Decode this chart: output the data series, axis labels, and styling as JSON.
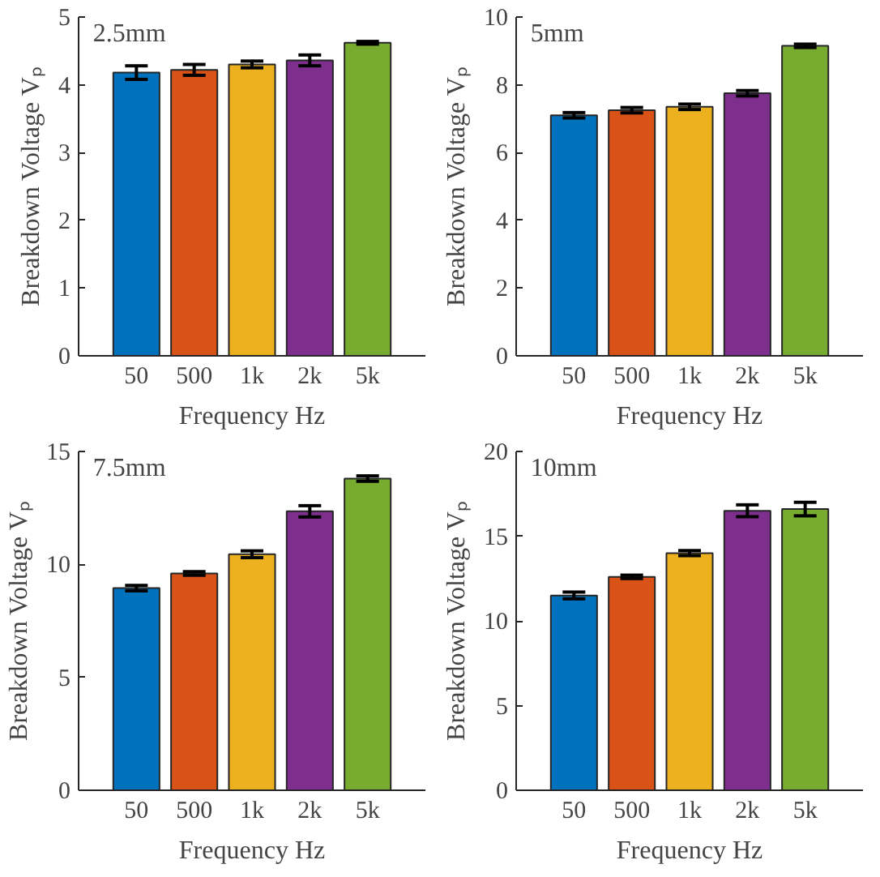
{
  "chart_data": [
    {
      "type": "bar",
      "categories": [
        "50",
        "500",
        "1k",
        "2k",
        "5k"
      ],
      "xlabel": "Frequency Hz",
      "ylabel": "Breakdown Voltage Vₚ",
      "annotations": [
        "2.5mm"
      ],
      "values": [
        4.18,
        4.22,
        4.3,
        4.36,
        4.62
      ],
      "errors": [
        0.1,
        0.08,
        0.05,
        0.08,
        0.02
      ],
      "colors": [
        "#0072bd",
        "#d95319",
        "#edb120",
        "#7e2f8e",
        "#77ac30"
      ],
      "ylim": [
        0,
        5
      ],
      "yticks": [
        0,
        1,
        2,
        3,
        4,
        5
      ],
      "grid": false
    },
    {
      "type": "bar",
      "categories": [
        "50",
        "500",
        "1k",
        "2k",
        "5k"
      ],
      "xlabel": "Frequency Hz",
      "ylabel": "Breakdown Voltage Vₚ",
      "annotations": [
        "5mm"
      ],
      "values": [
        7.1,
        7.25,
        7.35,
        7.75,
        9.15
      ],
      "errors": [
        0.08,
        0.08,
        0.08,
        0.08,
        0.05
      ],
      "colors": [
        "#0072bd",
        "#d95319",
        "#edb120",
        "#7e2f8e",
        "#77ac30"
      ],
      "ylim": [
        0,
        10
      ],
      "yticks": [
        0,
        2,
        4,
        6,
        8,
        10
      ],
      "grid": false
    },
    {
      "type": "bar",
      "categories": [
        "50",
        "500",
        "1k",
        "2k",
        "5k"
      ],
      "xlabel": "Frequency Hz",
      "ylabel": "Breakdown Voltage Vₚ",
      "annotations": [
        "7.5mm"
      ],
      "values": [
        8.95,
        9.6,
        10.45,
        12.35,
        13.8
      ],
      "errors": [
        0.12,
        0.08,
        0.15,
        0.25,
        0.12
      ],
      "colors": [
        "#0072bd",
        "#d95319",
        "#edb120",
        "#7e2f8e",
        "#77ac30"
      ],
      "ylim": [
        0,
        15
      ],
      "yticks": [
        0,
        5,
        10,
        15
      ],
      "grid": false
    },
    {
      "type": "bar",
      "categories": [
        "50",
        "500",
        "1k",
        "2k",
        "5k"
      ],
      "xlabel": "Frequency Hz",
      "ylabel": "Breakdown Voltage Vₚ",
      "annotations": [
        "10mm"
      ],
      "values": [
        11.5,
        12.6,
        14.0,
        16.5,
        16.6
      ],
      "errors": [
        0.2,
        0.1,
        0.15,
        0.35,
        0.4
      ],
      "colors": [
        "#0072bd",
        "#d95319",
        "#edb120",
        "#7e2f8e",
        "#77ac30"
      ],
      "ylim": [
        0,
        20
      ],
      "yticks": [
        0,
        5,
        10,
        15,
        20
      ],
      "grid": false
    }
  ]
}
